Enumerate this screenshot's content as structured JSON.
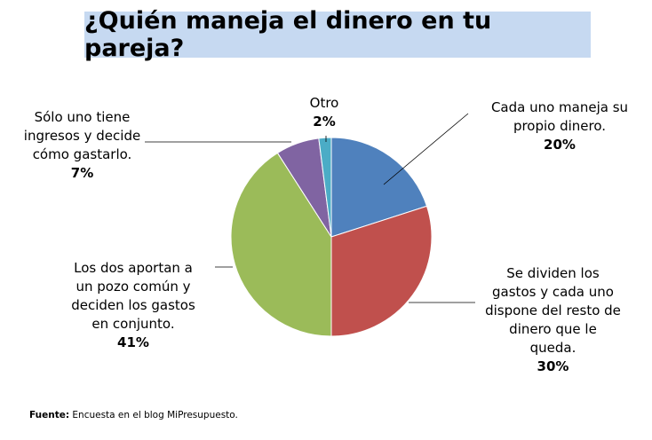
{
  "title": "¿Quién maneja el dinero en tu pareja?",
  "source": {
    "label": "Fuente:",
    "text": " Encuesta en el blog MiPresupuesto."
  },
  "chart_data": {
    "type": "pie",
    "title": "¿Quién maneja el dinero en tu pareja?",
    "slices": [
      {
        "lines": [
          "Cada uno maneja su",
          "propio dinero."
        ],
        "percent": "20%",
        "value": 20,
        "color": "#4f81bd"
      },
      {
        "lines": [
          "Se dividen los",
          "gastos y cada uno",
          "dispone del resto de",
          "dinero que le",
          "queda."
        ],
        "percent": "30%",
        "value": 30,
        "color": "#c0504d"
      },
      {
        "lines": [
          "Los dos aportan a",
          "un pozo común y",
          "deciden los gastos",
          "en conjunto."
        ],
        "percent": "41%",
        "value": 41,
        "color": "#9bbb59"
      },
      {
        "lines": [
          "Sólo uno tiene",
          "ingresos y decide",
          "cómo gastarlo."
        ],
        "percent": "7%",
        "value": 7,
        "color": "#8064a2"
      },
      {
        "lines": [
          "Otro"
        ],
        "percent": "2%",
        "value": 2,
        "color": "#4bacc6"
      }
    ]
  }
}
